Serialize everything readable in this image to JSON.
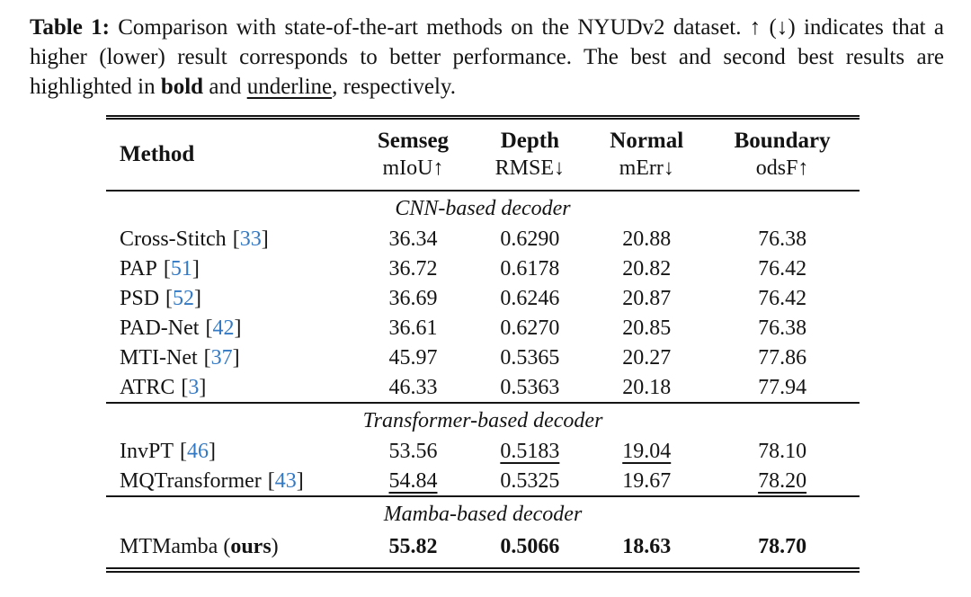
{
  "colors": {
    "background": "#ffffff",
    "text": "#141414",
    "citation": "#3379c4"
  },
  "caption": {
    "label": "Table 1:",
    "part1": " Comparison with state-of-the-art methods on the NYUDv2 dataset. ↑ (↓) indicates that a higher (lower) result corresponds to better performance. The best and second best results are highlighted in ",
    "bold_word": "bold",
    "part2": " and ",
    "underline_word": "underline",
    "part3": ", respectively."
  },
  "table": {
    "cite_open": "[",
    "cite_close": "]",
    "header": {
      "method": "Method",
      "columns": [
        {
          "title": "Semseg",
          "metric": "mIoU↑"
        },
        {
          "title": "Depth",
          "metric": "RMSE↓"
        },
        {
          "title": "Normal",
          "metric": "mErr↓"
        },
        {
          "title": "Boundary",
          "metric": "odsF↑"
        }
      ]
    },
    "sections": [
      {
        "title": "CNN-based decoder",
        "rows": [
          {
            "method": "Cross-Stitch",
            "cite": "33",
            "values": [
              {
                "text": "36.34",
                "emphasis": "normal"
              },
              {
                "text": "0.6290",
                "emphasis": "normal"
              },
              {
                "text": "20.88",
                "emphasis": "normal"
              },
              {
                "text": "76.38",
                "emphasis": "normal"
              }
            ]
          },
          {
            "method": "PAP",
            "cite": "51",
            "values": [
              {
                "text": "36.72",
                "emphasis": "normal"
              },
              {
                "text": "0.6178",
                "emphasis": "normal"
              },
              {
                "text": "20.82",
                "emphasis": "normal"
              },
              {
                "text": "76.42",
                "emphasis": "normal"
              }
            ]
          },
          {
            "method": "PSD",
            "cite": "52",
            "values": [
              {
                "text": "36.69",
                "emphasis": "normal"
              },
              {
                "text": "0.6246",
                "emphasis": "normal"
              },
              {
                "text": "20.87",
                "emphasis": "normal"
              },
              {
                "text": "76.42",
                "emphasis": "normal"
              }
            ]
          },
          {
            "method": "PAD-Net",
            "cite": "42",
            "values": [
              {
                "text": "36.61",
                "emphasis": "normal"
              },
              {
                "text": "0.6270",
                "emphasis": "normal"
              },
              {
                "text": "20.85",
                "emphasis": "normal"
              },
              {
                "text": "76.38",
                "emphasis": "normal"
              }
            ]
          },
          {
            "method": "MTI-Net",
            "cite": "37",
            "values": [
              {
                "text": "45.97",
                "emphasis": "normal"
              },
              {
                "text": "0.5365",
                "emphasis": "normal"
              },
              {
                "text": "20.27",
                "emphasis": "normal"
              },
              {
                "text": "77.86",
                "emphasis": "normal"
              }
            ]
          },
          {
            "method": "ATRC",
            "cite": "3",
            "values": [
              {
                "text": "46.33",
                "emphasis": "normal"
              },
              {
                "text": "0.5363",
                "emphasis": "normal"
              },
              {
                "text": "20.18",
                "emphasis": "normal"
              },
              {
                "text": "77.94",
                "emphasis": "normal"
              }
            ]
          }
        ]
      },
      {
        "title": "Transformer-based decoder",
        "rows": [
          {
            "method": "InvPT",
            "cite": "46",
            "values": [
              {
                "text": "53.56",
                "emphasis": "normal"
              },
              {
                "text": "0.5183",
                "emphasis": "underline"
              },
              {
                "text": "19.04",
                "emphasis": "underline"
              },
              {
                "text": "78.10",
                "emphasis": "normal"
              }
            ]
          },
          {
            "method": "MQTransformer",
            "cite": "43",
            "values": [
              {
                "text": "54.84",
                "emphasis": "underline"
              },
              {
                "text": "0.5325",
                "emphasis": "normal"
              },
              {
                "text": "19.67",
                "emphasis": "normal"
              },
              {
                "text": "78.20",
                "emphasis": "underline"
              }
            ]
          }
        ]
      },
      {
        "title": "Mamba-based decoder",
        "rows": [
          {
            "method_prefix": "MTMamba (",
            "method_bold": "ours",
            "method_suffix": ")",
            "values": [
              {
                "text": "55.82",
                "emphasis": "bold"
              },
              {
                "text": "0.5066",
                "emphasis": "bold"
              },
              {
                "text": "18.63",
                "emphasis": "bold"
              },
              {
                "text": "78.70",
                "emphasis": "bold"
              }
            ]
          }
        ]
      }
    ]
  }
}
